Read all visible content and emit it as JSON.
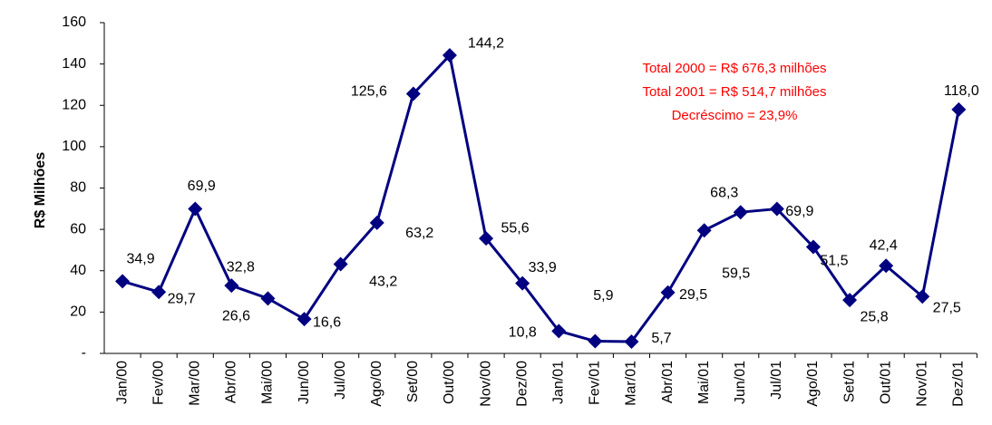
{
  "chart_data": {
    "type": "line",
    "y_label": "R$ Milhões",
    "annotations": [
      "Total 2000 = R$ 676,3 milhões",
      "Total 2001 = R$ 514,7 milhões",
      "Decréscimo = 23,9%"
    ],
    "annotation_color": "#ff0000",
    "categories": [
      "Jan/00",
      "Fev/00",
      "Mar/00",
      "Abr/00",
      "Mai/00",
      "Jun/00",
      "Jul/00",
      "Ago/00",
      "Set/00",
      "Out/00",
      "Nov/00",
      "Dez/00",
      "Jan/01",
      "Fev/01",
      "Mar/01",
      "Abr/01",
      "Mai/01",
      "Jun/01",
      "Jul/01",
      "Ago/01",
      "Set/01",
      "Out/01",
      "Nov/01",
      "Dez/01"
    ],
    "series": [
      {
        "color": "#000080",
        "values": [
          34.9,
          29.7,
          69.9,
          32.8,
          26.6,
          16.6,
          43.2,
          63.2,
          125.6,
          144.2,
          55.6,
          33.9,
          10.8,
          5.9,
          5.7,
          29.5,
          59.5,
          68.3,
          69.9,
          51.5,
          25.8,
          42.4,
          27.5,
          118.0
        ],
        "value_labels": [
          "34,9",
          "29,7",
          "69,9",
          "32,8",
          "26,6",
          "16,6",
          "43,2",
          "63,2",
          "125,6",
          "144,2",
          "55,6",
          "33,9",
          "10,8",
          "5,9",
          "5,7",
          "29,5",
          "59,5",
          "68,3",
          "69,9",
          "51,5",
          "25,8",
          "42,4",
          "27,5",
          "118,0"
        ]
      }
    ],
    "ylim": [
      0,
      160
    ],
    "yticks": [
      {
        "value": 0,
        "label": "-"
      },
      20,
      40,
      60,
      80,
      100,
      120,
      140,
      160
    ],
    "grid": false
  }
}
